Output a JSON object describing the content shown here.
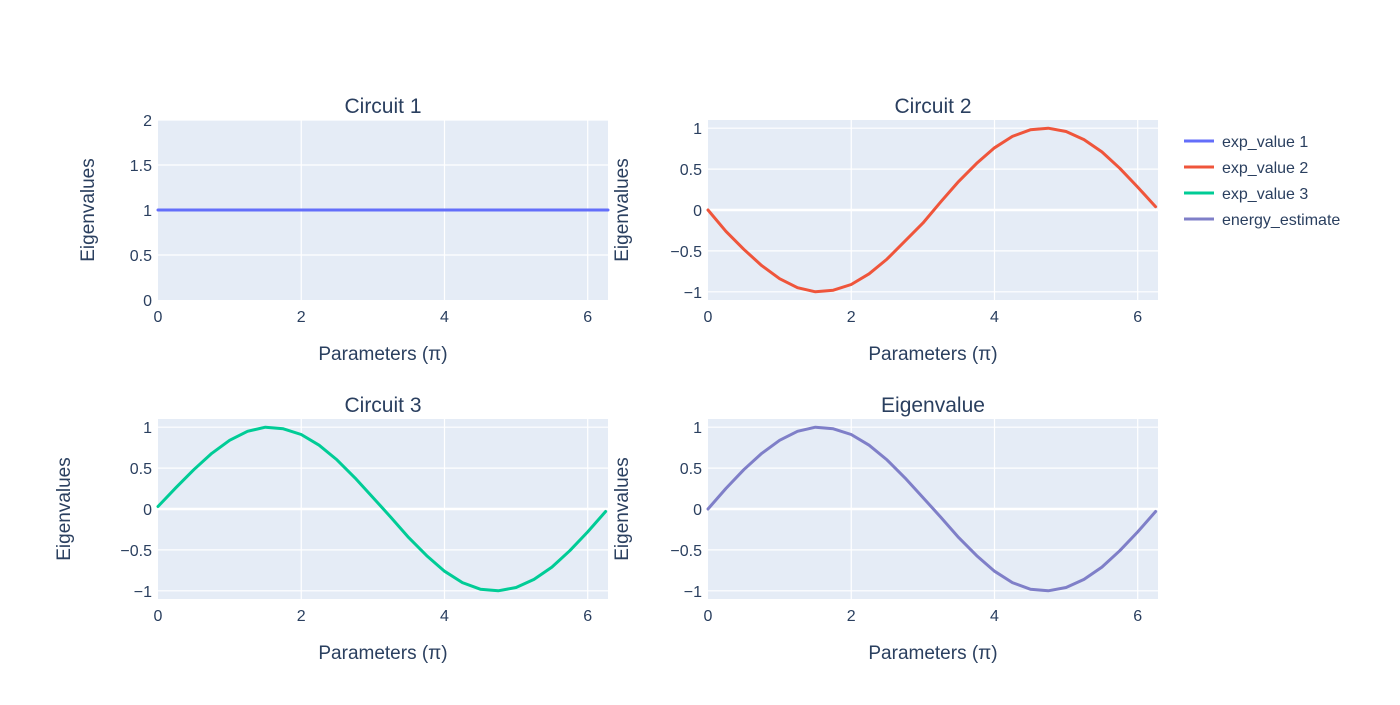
{
  "chart_data": [
    {
      "type": "line",
      "title": "Circuit 1",
      "xlabel": "Parameters (π)",
      "ylabel": "Eigenvalues",
      "xlim": [
        0,
        6.2832
      ],
      "ylim": [
        0,
        2
      ],
      "xticks": [
        0,
        2,
        4,
        6
      ],
      "xtick_labels": [
        "0",
        "2",
        "4",
        "6"
      ],
      "yticks": [
        0,
        0.5,
        1,
        1.5,
        2
      ],
      "ytick_labels": [
        "0",
        "0.5",
        "1",
        "1.5",
        "2"
      ],
      "grid": true,
      "series": [
        {
          "legend": "exp_value 1",
          "color": "#636efa",
          "x": [
            0,
            6.2832
          ],
          "y": [
            1,
            1
          ]
        }
      ]
    },
    {
      "type": "line",
      "title": "Circuit 2",
      "xlabel": "Parameters (π)",
      "ylabel": "Eigenvalues",
      "xlim": [
        0,
        6.2832
      ],
      "ylim": [
        -1.1,
        1.1
      ],
      "xticks": [
        0,
        2,
        4,
        6
      ],
      "xtick_labels": [
        "0",
        "2",
        "4",
        "6"
      ],
      "yticks": [
        -1,
        -0.5,
        0,
        0.5,
        1
      ],
      "ytick_labels": [
        "−1",
        "−0.5",
        "0",
        "0.5",
        "1"
      ],
      "grid": true,
      "series": [
        {
          "legend": "exp_value 2",
          "color": "#ef553b",
          "x": [
            0,
            0.25,
            0.5,
            0.75,
            1.0,
            1.25,
            1.5,
            1.75,
            2.0,
            2.25,
            2.5,
            2.75,
            3.0,
            3.25,
            3.5,
            3.75,
            4.0,
            4.25,
            4.5,
            4.75,
            5.0,
            5.25,
            5.5,
            5.75,
            6.0,
            6.25
          ],
          "y": [
            0.0,
            -0.26,
            -0.48,
            -0.68,
            -0.84,
            -0.95,
            -1.0,
            -0.98,
            -0.91,
            -0.78,
            -0.6,
            -0.38,
            -0.16,
            0.1,
            0.35,
            0.57,
            0.76,
            0.9,
            0.98,
            1.0,
            0.96,
            0.86,
            0.71,
            0.51,
            0.28,
            0.04
          ]
        }
      ]
    },
    {
      "type": "line",
      "title": "Circuit 3",
      "xlabel": "Parameters (π)",
      "ylabel": "Eigenvalues",
      "xlim": [
        0,
        6.2832
      ],
      "ylim": [
        -1.1,
        1.1
      ],
      "xticks": [
        0,
        2,
        4,
        6
      ],
      "xtick_labels": [
        "0",
        "2",
        "4",
        "6"
      ],
      "yticks": [
        -1,
        -0.5,
        0,
        0.5,
        1
      ],
      "ytick_labels": [
        "−1",
        "−0.5",
        "0",
        "0.5",
        "1"
      ],
      "grid": true,
      "series": [
        {
          "legend": "exp_value 3",
          "color": "#00cc96",
          "x": [
            0,
            0.25,
            0.5,
            0.75,
            1.0,
            1.25,
            1.5,
            1.75,
            2.0,
            2.25,
            2.5,
            2.75,
            3.0,
            3.25,
            3.5,
            3.75,
            4.0,
            4.25,
            4.5,
            4.75,
            5.0,
            5.25,
            5.5,
            5.75,
            6.0,
            6.25
          ],
          "y": [
            0.03,
            0.26,
            0.48,
            0.68,
            0.84,
            0.95,
            1.0,
            0.98,
            0.91,
            0.78,
            0.6,
            0.38,
            0.14,
            -0.1,
            -0.35,
            -0.57,
            -0.76,
            -0.9,
            -0.98,
            -1.0,
            -0.96,
            -0.86,
            -0.71,
            -0.51,
            -0.28,
            -0.03
          ]
        }
      ]
    },
    {
      "type": "line",
      "title": "Eigenvalue",
      "xlabel": "Parameters (π)",
      "ylabel": "Eigenvalues",
      "xlim": [
        0,
        6.2832
      ],
      "ylim": [
        -1.1,
        1.1
      ],
      "xticks": [
        0,
        2,
        4,
        6
      ],
      "xtick_labels": [
        "0",
        "2",
        "4",
        "6"
      ],
      "yticks": [
        -1,
        -0.5,
        0,
        0.5,
        1
      ],
      "ytick_labels": [
        "−1",
        "−0.5",
        "0",
        "0.5",
        "1"
      ],
      "grid": true,
      "series": [
        {
          "legend": "energy_estimate",
          "color": "#7f7fc8",
          "x": [
            0,
            0.25,
            0.5,
            0.75,
            1.0,
            1.25,
            1.5,
            1.75,
            2.0,
            2.25,
            2.5,
            2.75,
            3.0,
            3.25,
            3.5,
            3.75,
            4.0,
            4.25,
            4.5,
            4.75,
            5.0,
            5.25,
            5.5,
            5.75,
            6.0,
            6.25
          ],
          "y": [
            0.0,
            0.25,
            0.48,
            0.68,
            0.84,
            0.95,
            1.0,
            0.98,
            0.91,
            0.78,
            0.6,
            0.38,
            0.14,
            -0.1,
            -0.35,
            -0.57,
            -0.76,
            -0.9,
            -0.98,
            -1.0,
            -0.96,
            -0.86,
            -0.71,
            -0.51,
            -0.28,
            -0.03
          ]
        }
      ]
    }
  ],
  "legend": {
    "placement": "right",
    "items": [
      {
        "label": "exp_value 1",
        "color": "#636efa"
      },
      {
        "label": "exp_value 2",
        "color": "#ef553b"
      },
      {
        "label": "exp_value 3",
        "color": "#00cc96"
      },
      {
        "label": "energy_estimate",
        "color": "#7f7fc8"
      }
    ]
  }
}
